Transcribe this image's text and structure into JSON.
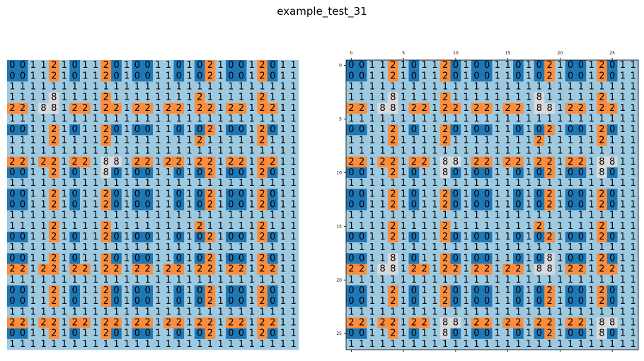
{
  "title": "example_test_31",
  "colors": {
    "0": "#1f77b4",
    "1": "#9ecae1",
    "2": "#fd8d3c",
    "8": "#d9d9d9"
  },
  "left_grid": [
    "0011210112010011010210012011",
    "0011210112010011010210012011",
    "1111111111111111111111111111",
    "1111811112111111112111112111",
    "2218812212212212212212212211",
    "1111111111111111111111111111",
    "0011210112010011010210012011",
    "1111211112111111112111112111",
    "1111111111111111111111111111",
    "2212212218812212212212212211",
    "0011210118010011010210012011",
    "1111111111111111111111111111",
    "0011210112010011010210012011",
    "0011210112010011010210012011",
    "1111111111111111111111111111",
    "1111211112111111112111112111",
    "0011210112010011010210012011",
    "1111111111111111111111111111",
    "0011210112010011010210012011",
    "2212212212212212212212212211",
    "1111111111111111111111111111",
    "0011210112010011010210012011",
    "0011210112010011010210012011",
    "1111111111111111111111111111",
    "2212212212212212212212212211",
    "0011210112010011010210012011",
    "1111111111111111111111111111"
  ],
  "right_grid": [
    "0011210112010011010210012011",
    "0011210112010011010210012011",
    "1111111111111111111111111111",
    "1111811112111111118111112111",
    "2218812212212212218812212211",
    "1111111111111111111111111111",
    "0011210112010011010210012011",
    "1111211112111111112111112111",
    "1111111111111111111111111111",
    "2212212218812212212212218811",
    "0011210118010011010210018011",
    "1111111111111111111111111111",
    "0011210112010011010210012011",
    "0011210112010011010210012011",
    "1111111111111111111111111111",
    "1111211112111111112111112111",
    "0011210112010011010210012011",
    "1111111111111111111111111111",
    "0011810112010011010810012011",
    "2218812212212212218812212211",
    "1111111111111111111111111111",
    "0011210112010011010210012011",
    "0011210112010011010210012011",
    "1111111111111111111111111111",
    "2212212218812212212212218811",
    "0011210118010011010210018011",
    "1111111111111111111111111111"
  ],
  "right_axis": {
    "x_ticks": [
      "0",
      "5",
      "10",
      "15",
      "20",
      "25"
    ],
    "y_ticks": [
      "0",
      "5",
      "10",
      "15",
      "20",
      "25"
    ]
  }
}
